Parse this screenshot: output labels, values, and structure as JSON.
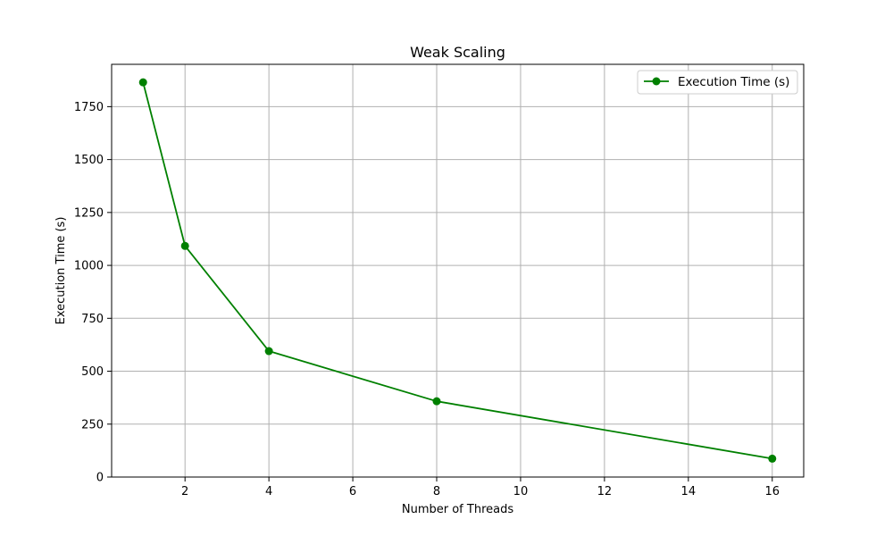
{
  "chart_data": {
    "type": "line",
    "title": "Weak Scaling",
    "xlabel": "Number of Threads",
    "ylabel": "Execution Time (s)",
    "xlim": [
      0.25,
      16.75
    ],
    "ylim": [
      0,
      1950
    ],
    "xticks": [
      2,
      4,
      6,
      8,
      10,
      12,
      14,
      16
    ],
    "yticks": [
      0,
      250,
      500,
      750,
      1000,
      1250,
      1500,
      1750
    ],
    "grid": true,
    "legend_position": "top-right",
    "series": [
      {
        "name": "Execution Time (s)",
        "color": "#008000",
        "marker": "circle",
        "x": [
          1,
          2,
          4,
          8,
          16
        ],
        "y": [
          1865,
          1092,
          595,
          358,
          87
        ]
      }
    ]
  }
}
